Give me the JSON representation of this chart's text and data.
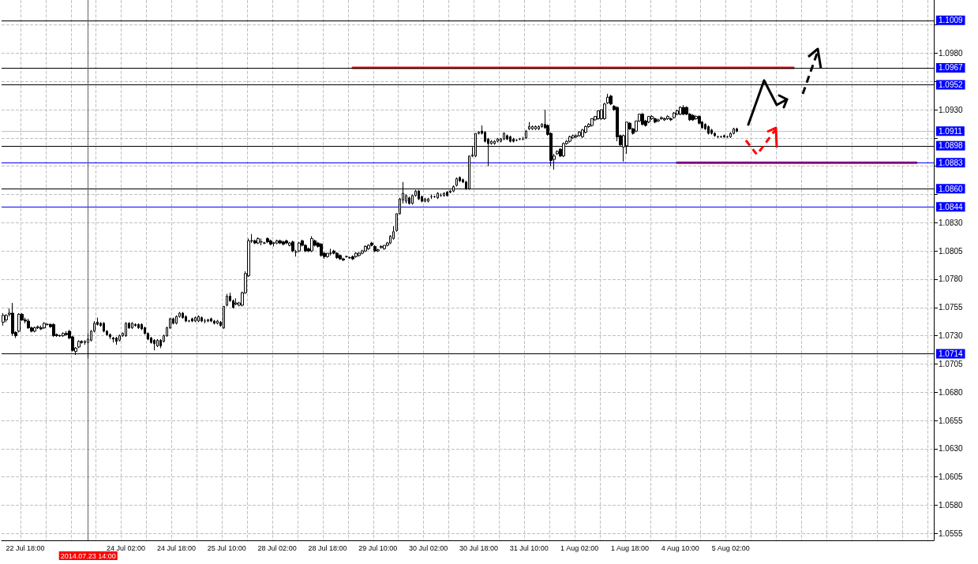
{
  "chart_data": {
    "type": "candlestick",
    "categories": [
      null,
      null,
      null,
      null,
      null,
      null,
      null,
      "22 Jul 18:00",
      null,
      null,
      null,
      null,
      null,
      null,
      null,
      null,
      null,
      null,
      null,
      null,
      null,
      null,
      null,
      null,
      null,
      null,
      null,
      "2014.07.23 14:00",
      null,
      null,
      null,
      null,
      null,
      null,
      null,
      null,
      null,
      null,
      null,
      "24 Jul 02:00",
      null,
      null,
      null,
      null,
      null,
      null,
      null,
      null,
      null,
      null,
      null,
      null,
      null,
      null,
      null,
      "24 Jul 18:00",
      null,
      null,
      null,
      null,
      null,
      null,
      null,
      null,
      null,
      null,
      null,
      null,
      null,
      null,
      null,
      "25 Jul 10:00",
      null,
      null,
      null,
      null,
      null,
      null,
      null,
      null,
      null,
      null,
      null,
      null,
      null,
      null,
      null,
      "28 Jul 02:00",
      null,
      null,
      null,
      null,
      null,
      null,
      null,
      null,
      null,
      null,
      null,
      null,
      null,
      null,
      null,
      "28 Jul 18:00",
      null,
      null,
      null,
      null,
      null,
      null,
      null,
      null,
      null,
      null,
      null,
      null,
      null,
      null,
      null,
      "29 Jul 10:00",
      null,
      null,
      null,
      null,
      null,
      null,
      null,
      null,
      null,
      null,
      null,
      null,
      null,
      null,
      null,
      "30 Jul 02:00",
      null,
      null,
      null,
      null,
      null,
      null,
      null,
      null,
      null,
      null,
      null,
      null,
      null,
      null,
      null,
      "30 Jul 18:00",
      null,
      null,
      null,
      null,
      null,
      null,
      null,
      null,
      null,
      null,
      null,
      null,
      null,
      null,
      null,
      "31 Jul 10:00",
      null,
      null,
      null,
      null,
      null,
      null,
      null,
      null,
      null,
      null,
      null,
      null,
      null,
      null,
      null,
      "1 Aug 02:00",
      null,
      null,
      null,
      null,
      null,
      null,
      null,
      null,
      null,
      null,
      null,
      null,
      null,
      null,
      null,
      "1 Aug 18:00",
      null,
      null,
      null,
      null,
      null,
      null,
      null,
      null,
      null,
      null,
      null,
      null,
      null,
      null,
      null,
      "4 Aug 10:00",
      null,
      null,
      null,
      null,
      null,
      null,
      null,
      null,
      null,
      null,
      null,
      null,
      null,
      null,
      null,
      "5 Aug 02:00",
      null,
      null,
      null,
      null,
      null,
      null,
      null,
      null,
      null,
      null,
      null,
      null,
      null,
      null,
      null,
      null,
      null,
      null,
      null,
      null,
      null,
      null,
      null,
      null,
      null,
      null,
      null,
      null,
      null,
      null,
      null,
      null,
      null,
      null,
      null,
      null,
      null,
      null,
      null,
      null,
      null,
      null,
      null,
      null,
      null,
      null,
      null,
      null,
      null,
      null,
      null,
      null,
      null,
      null,
      null,
      null,
      null,
      null,
      null,
      null,
      null,
      null,
      null,
      null
    ],
    "ohlc": [
      [
        1.0742,
        1.075,
        1.0739,
        1.0748
      ],
      [
        1.0744,
        1.0749,
        1.0742,
        1.0748
      ],
      [
        1.0749,
        1.0754,
        1.0747,
        1.075
      ],
      [
        1.075,
        1.0759,
        1.073,
        1.0732
      ],
      [
        1.0733,
        1.0734,
        1.0728,
        1.073
      ],
      [
        1.0734,
        1.075,
        1.0733,
        1.0749
      ],
      [
        1.0749,
        1.075,
        1.0743,
        1.0744
      ],
      [
        1.0744,
        1.0746,
        1.0741,
        1.0743
      ],
      [
        1.0743,
        1.0745,
        1.0736,
        1.0737
      ],
      [
        1.0737,
        1.0738,
        1.0733,
        1.0734
      ],
      [
        1.0734,
        1.0738,
        1.0733,
        1.0737
      ],
      [
        1.0737,
        1.0739,
        1.0736,
        1.0738
      ],
      [
        1.0737,
        1.0739,
        1.0735,
        1.0736
      ],
      [
        1.0737,
        1.0742,
        1.0736,
        1.0741
      ],
      [
        1.074,
        1.0741,
        1.0739,
        1.074
      ],
      [
        1.074,
        1.0741,
        1.0737,
        1.0738
      ],
      [
        1.074,
        1.0741,
        1.0729,
        1.073
      ],
      [
        1.0731,
        1.0732,
        1.0729,
        1.073
      ],
      [
        1.073,
        1.0731,
        1.0729,
        1.073
      ],
      [
        1.073,
        1.0733,
        1.0729,
        1.0732
      ],
      [
        1.0732,
        1.0734,
        1.073,
        1.0731
      ],
      [
        1.0734,
        1.0735,
        1.0727,
        1.0728
      ],
      [
        1.0729,
        1.073,
        1.0716,
        1.0717
      ],
      [
        1.0716,
        1.072,
        1.0713,
        1.0719
      ],
      [
        1.072,
        1.0726,
        1.0719,
        1.0725
      ],
      [
        1.0725,
        1.0726,
        1.0723,
        1.0724
      ],
      [
        1.0724,
        1.0726,
        1.0722,
        1.0725
      ],
      [
        1.0724,
        1.0732,
        1.071,
        1.0727
      ],
      [
        1.0726,
        1.0735,
        1.0725,
        1.0734
      ],
      [
        1.0734,
        1.0743,
        1.0733,
        1.0741
      ],
      [
        1.0742,
        1.0746,
        1.0739,
        1.074
      ],
      [
        1.0741,
        1.0742,
        1.0738,
        1.0739
      ],
      [
        1.0741,
        1.0742,
        1.0733,
        1.0734
      ],
      [
        1.0734,
        1.0735,
        1.073,
        1.0731
      ],
      [
        1.0731,
        1.0732,
        1.0727,
        1.0729
      ],
      [
        1.0728,
        1.0729,
        1.0724,
        1.0727
      ],
      [
        1.0728,
        1.0729,
        1.0722,
        1.0725
      ],
      [
        1.0726,
        1.0731,
        1.0725,
        1.073
      ],
      [
        1.073,
        1.0733,
        1.0729,
        1.0732
      ],
      [
        1.073,
        1.0742,
        1.0729,
        1.0741
      ],
      [
        1.0741,
        1.0742,
        1.0736,
        1.0737
      ],
      [
        1.0737,
        1.0742,
        1.0736,
        1.0741
      ],
      [
        1.074,
        1.0741,
        1.0738,
        1.0739
      ],
      [
        1.074,
        1.0741,
        1.0736,
        1.0737
      ],
      [
        1.074,
        1.0741,
        1.0735,
        1.0736
      ],
      [
        1.0737,
        1.0738,
        1.0731,
        1.0732
      ],
      [
        1.0732,
        1.0733,
        1.0726,
        1.0727
      ],
      [
        1.0728,
        1.0729,
        1.0723,
        1.0724
      ],
      [
        1.0726,
        1.0727,
        1.0717,
        1.0723
      ],
      [
        1.0721,
        1.0727,
        1.072,
        1.0726
      ],
      [
        1.0726,
        1.0727,
        1.0719,
        1.0721
      ],
      [
        1.0725,
        1.0731,
        1.0724,
        1.073
      ],
      [
        1.073,
        1.0738,
        1.0729,
        1.0737
      ],
      [
        1.0737,
        1.0746,
        1.0736,
        1.0745
      ],
      [
        1.0745,
        1.0746,
        1.074,
        1.0741
      ],
      [
        1.0741,
        1.0748,
        1.074,
        1.0747
      ],
      [
        1.0747,
        1.0751,
        1.0746,
        1.075
      ],
      [
        1.075,
        1.0751,
        1.0745,
        1.0746
      ],
      [
        1.0747,
        1.0748,
        1.0742,
        1.0743
      ],
      [
        1.0743,
        1.0744,
        1.0742,
        1.0743
      ],
      [
        1.0745,
        1.0746,
        1.0742,
        1.0743
      ],
      [
        1.0743,
        1.0747,
        1.0742,
        1.0746
      ],
      [
        1.0743,
        1.0748,
        1.0742,
        1.0747
      ],
      [
        1.0746,
        1.0747,
        1.0742,
        1.0743
      ],
      [
        1.0743,
        1.0745,
        1.0741,
        1.0743
      ],
      [
        1.0743,
        1.0745,
        1.0742,
        1.0744
      ],
      [
        1.0745,
        1.0746,
        1.0742,
        1.0743
      ],
      [
        1.0743,
        1.0744,
        1.074,
        1.0741
      ],
      [
        1.0741,
        1.0744,
        1.074,
        1.0743
      ],
      [
        1.0742,
        1.0743,
        1.0738,
        1.0739
      ],
      [
        1.0737,
        1.0756,
        1.0736,
        1.0756
      ],
      [
        1.0757,
        1.0767,
        1.0756,
        1.0765
      ],
      [
        1.0765,
        1.0768,
        1.076,
        1.0761
      ],
      [
        1.0761,
        1.0762,
        1.0754,
        1.0755
      ],
      [
        1.0758,
        1.0763,
        1.0757,
        1.0759
      ],
      [
        1.0757,
        1.076,
        1.0756,
        1.0759
      ],
      [
        1.0757,
        1.0769,
        1.0756,
        1.0768
      ],
      [
        1.0768,
        1.0787,
        1.0767,
        1.0785
      ],
      [
        1.0783,
        1.0816,
        1.0782,
        1.0814
      ],
      [
        1.0814,
        1.082,
        1.0812,
        1.0814
      ],
      [
        1.0814,
        1.0815,
        1.0811,
        1.0812
      ],
      [
        1.0812,
        1.0817,
        1.0811,
        1.0816
      ],
      [
        1.0813,
        1.0816,
        1.081,
        1.0813
      ],
      [
        1.0812,
        1.0813,
        1.0811,
        1.0812
      ],
      [
        1.0816,
        1.0817,
        1.0812,
        1.0813
      ],
      [
        1.0814,
        1.0815,
        1.081,
        1.0811
      ],
      [
        1.0812,
        1.0813,
        1.0809,
        1.0812
      ],
      [
        1.0812,
        1.0815,
        1.0811,
        1.0814
      ],
      [
        1.0814,
        1.0815,
        1.0811,
        1.0812
      ],
      [
        1.0813,
        1.0814,
        1.081,
        1.0811
      ],
      [
        1.0814,
        1.0815,
        1.0811,
        1.0812
      ],
      [
        1.081,
        1.0813,
        1.0809,
        1.0812
      ],
      [
        1.0813,
        1.0814,
        1.0804,
        1.0805
      ],
      [
        1.0804,
        1.0806,
        1.08,
        1.0804
      ],
      [
        1.0805,
        1.0813,
        1.0804,
        1.0812
      ],
      [
        1.0814,
        1.0815,
        1.0809,
        1.081
      ],
      [
        1.081,
        1.0811,
        1.0804,
        1.0805
      ],
      [
        1.0807,
        1.0808,
        1.0804,
        1.0805
      ],
      [
        1.0805,
        1.0818,
        1.0804,
        1.0816
      ],
      [
        1.0814,
        1.0815,
        1.0809,
        1.081
      ],
      [
        1.0812,
        1.0813,
        1.0808,
        1.0809
      ],
      [
        1.0811,
        1.0812,
        1.08,
        1.0801
      ],
      [
        1.0803,
        1.0804,
        1.0798,
        1.08
      ],
      [
        1.08,
        1.0803,
        1.0799,
        1.0803
      ],
      [
        1.0803,
        1.0807,
        1.0801,
        1.0803
      ],
      [
        1.0805,
        1.0806,
        1.0802,
        1.0803
      ],
      [
        1.0803,
        1.0804,
        1.0798,
        1.0799
      ],
      [
        1.0801,
        1.0802,
        1.0797,
        1.0798
      ],
      [
        1.0798,
        1.0799,
        1.0796,
        1.0797
      ],
      [
        1.08,
        1.0801,
        1.0799,
        1.08
      ],
      [
        1.0799,
        1.08,
        1.0798,
        1.0799
      ],
      [
        1.08,
        1.0801,
        1.0797,
        1.0798
      ],
      [
        1.08,
        1.0804,
        1.0799,
        1.0803
      ],
      [
        1.0801,
        1.0804,
        1.08,
        1.0803
      ],
      [
        1.0803,
        1.0806,
        1.0802,
        1.0805
      ],
      [
        1.0805,
        1.081,
        1.0804,
        1.0809
      ],
      [
        1.0807,
        1.0811,
        1.0806,
        1.081
      ],
      [
        1.0812,
        1.0813,
        1.0809,
        1.081
      ],
      [
        1.0809,
        1.081,
        1.0804,
        1.0805
      ],
      [
        1.0805,
        1.0807,
        1.0804,
        1.0806
      ],
      [
        1.0808,
        1.081,
        1.0807,
        1.0809
      ],
      [
        1.0807,
        1.081,
        1.0806,
        1.081
      ],
      [
        1.081,
        1.0813,
        1.0809,
        1.0812
      ],
      [
        1.0812,
        1.0819,
        1.0811,
        1.0818
      ],
      [
        1.0816,
        1.0827,
        1.0815,
        1.0822
      ],
      [
        1.0823,
        1.0838,
        1.0822,
        1.0838
      ],
      [
        1.0838,
        1.0852,
        1.0837,
        1.0851
      ],
      [
        1.085,
        1.0866,
        1.0847,
        1.0856
      ],
      [
        1.0849,
        1.0855,
        1.0847,
        1.0854
      ],
      [
        1.0852,
        1.0853,
        1.0846,
        1.0847
      ],
      [
        1.0847,
        1.0855,
        1.0846,
        1.0854
      ],
      [
        1.0854,
        1.0859,
        1.0853,
        1.0858
      ],
      [
        1.0858,
        1.0859,
        1.085,
        1.0851
      ],
      [
        1.0853,
        1.0854,
        1.0848,
        1.0849
      ],
      [
        1.0849,
        1.0852,
        1.0848,
        1.0851
      ],
      [
        1.0849,
        1.0852,
        1.0848,
        1.0851
      ],
      [
        1.0853,
        1.0855,
        1.0851,
        1.0853
      ],
      [
        1.0853,
        1.0854,
        1.0852,
        1.0853
      ],
      [
        1.0852,
        1.0857,
        1.0851,
        1.0856
      ],
      [
        1.0854,
        1.0856,
        1.0853,
        1.0854
      ],
      [
        1.0854,
        1.0857,
        1.0853,
        1.0856
      ],
      [
        1.0857,
        1.0858,
        1.0853,
        1.0854
      ],
      [
        1.0857,
        1.0859,
        1.0856,
        1.0858
      ],
      [
        1.0858,
        1.0863,
        1.0857,
        1.0862
      ],
      [
        1.0863,
        1.087,
        1.0862,
        1.0869
      ],
      [
        1.087,
        1.0871,
        1.0866,
        1.0867
      ],
      [
        1.0868,
        1.0869,
        1.0865,
        1.0866
      ],
      [
        1.0866,
        1.0867,
        1.0859,
        1.086
      ],
      [
        1.086,
        1.0889,
        1.0859,
        1.0889
      ],
      [
        1.0889,
        1.0897,
        1.0888,
        1.089
      ],
      [
        1.0889,
        1.0909,
        1.0888,
        1.0909
      ],
      [
        1.0909,
        1.0911,
        1.0908,
        1.091
      ],
      [
        1.0911,
        1.0916,
        1.0908,
        1.0909
      ],
      [
        1.091,
        1.0911,
        1.0901,
        1.0902
      ],
      [
        1.0904,
        1.0905,
        1.088,
        1.09
      ],
      [
        1.09,
        1.0903,
        1.0899,
        1.0902
      ],
      [
        1.09,
        1.0903,
        1.0899,
        1.0902
      ],
      [
        1.0902,
        1.0905,
        1.0901,
        1.0904
      ],
      [
        1.0902,
        1.0905,
        1.0901,
        1.0904
      ],
      [
        1.0904,
        1.091,
        1.0903,
        1.0909
      ],
      [
        1.0907,
        1.0908,
        1.0903,
        1.0904
      ],
      [
        1.0906,
        1.0907,
        1.0901,
        1.0902
      ],
      [
        1.0904,
        1.0905,
        1.0901,
        1.0902
      ],
      [
        1.0903,
        1.0904,
        1.0902,
        1.0903
      ],
      [
        1.0904,
        1.0905,
        1.0903,
        1.0904
      ],
      [
        1.0904,
        1.0906,
        1.0903,
        1.0904
      ],
      [
        1.0905,
        1.0912,
        1.0904,
        1.0911
      ],
      [
        1.0913,
        1.0919,
        1.0912,
        1.0915
      ],
      [
        1.0913,
        1.0916,
        1.0912,
        1.0915
      ],
      [
        1.0913,
        1.0916,
        1.0912,
        1.0915
      ],
      [
        1.0913,
        1.0916,
        1.0912,
        1.0915
      ],
      [
        1.0915,
        1.0918,
        1.0914,
        1.0917
      ],
      [
        1.0917,
        1.093,
        1.0913,
        1.0914
      ],
      [
        1.0916,
        1.0917,
        1.0907,
        1.0908
      ],
      [
        1.0909,
        1.091,
        1.088,
        1.0885
      ],
      [
        1.0886,
        1.0891,
        1.0877,
        1.0889
      ],
      [
        1.0891,
        1.0894,
        1.089,
        1.0893
      ],
      [
        1.0895,
        1.0896,
        1.0888,
        1.0889
      ],
      [
        1.0889,
        1.0901,
        1.0888,
        1.09
      ],
      [
        1.09,
        1.0903,
        1.0899,
        1.0902
      ],
      [
        1.0902,
        1.0907,
        1.0901,
        1.0906
      ],
      [
        1.0905,
        1.0908,
        1.0904,
        1.0907
      ],
      [
        1.0906,
        1.0908,
        1.0905,
        1.0907
      ],
      [
        1.0907,
        1.0911,
        1.0906,
        1.091
      ],
      [
        1.0906,
        1.0913,
        1.0905,
        1.0912
      ],
      [
        1.091,
        1.0916,
        1.0909,
        1.0915
      ],
      [
        1.0915,
        1.0918,
        1.0914,
        1.0917
      ],
      [
        1.0916,
        1.0922,
        1.0915,
        1.0922
      ],
      [
        1.0921,
        1.0924,
        1.092,
        1.0924
      ],
      [
        1.0922,
        1.0929,
        1.0921,
        1.0929
      ],
      [
        1.0922,
        1.093,
        1.0921,
        1.093
      ],
      [
        1.0922,
        1.0936,
        1.0921,
        1.0935
      ],
      [
        1.0936,
        1.0944,
        1.0935,
        1.0941
      ],
      [
        1.0942,
        1.0943,
        1.0934,
        1.0935
      ],
      [
        1.0933,
        1.0934,
        1.0929,
        1.093
      ],
      [
        1.0932,
        1.0933,
        1.0902,
        1.0906
      ],
      [
        1.0907,
        1.0908,
        1.0898,
        1.0899
      ],
      [
        1.0897,
        1.0908,
        1.0884,
        1.0907
      ],
      [
        1.0898,
        1.0919,
        1.0891,
        1.0919
      ],
      [
        1.0918,
        1.0919,
        1.0912,
        1.0913
      ],
      [
        1.0913,
        1.0914,
        1.0908,
        1.0909
      ],
      [
        1.0911,
        1.092,
        1.091,
        1.092
      ],
      [
        1.092,
        1.0926,
        1.0919,
        1.0926
      ],
      [
        1.0926,
        1.0927,
        1.0916,
        1.0917
      ],
      [
        1.092,
        1.0921,
        1.0915,
        1.0916
      ],
      [
        1.0919,
        1.0924,
        1.0918,
        1.0924
      ],
      [
        1.0922,
        1.0925,
        1.0921,
        1.0924
      ],
      [
        1.0922,
        1.0923,
        1.0918,
        1.0919
      ],
      [
        1.092,
        1.0922,
        1.0919,
        1.0921
      ],
      [
        1.0922,
        1.0924,
        1.0921,
        1.0923
      ],
      [
        1.0921,
        1.0923,
        1.092,
        1.0922
      ],
      [
        1.0922,
        1.0925,
        1.0921,
        1.0924
      ],
      [
        1.0922,
        1.0923,
        1.092,
        1.0921
      ],
      [
        1.0923,
        1.0928,
        1.0922,
        1.0927
      ],
      [
        1.0926,
        1.093,
        1.0925,
        1.0929
      ],
      [
        1.0926,
        1.0933,
        1.0925,
        1.0932
      ],
      [
        1.0932,
        1.0934,
        1.0925,
        1.0926
      ],
      [
        1.0932,
        1.0933,
        1.0925,
        1.0926
      ],
      [
        1.0926,
        1.0927,
        1.092,
        1.0921
      ],
      [
        1.0925,
        1.0926,
        1.092,
        1.0921
      ],
      [
        1.0922,
        1.0925,
        1.0921,
        1.0924
      ],
      [
        1.0924,
        1.0925,
        1.0917,
        1.0918
      ],
      [
        1.0919,
        1.092,
        1.0913,
        1.0914
      ],
      [
        1.0917,
        1.0918,
        1.0912,
        1.0913
      ],
      [
        1.0915,
        1.0916,
        1.0908,
        1.0909
      ],
      [
        1.0912,
        1.0913,
        1.0908,
        1.0909
      ],
      [
        1.0909,
        1.091,
        1.0906,
        1.0907
      ],
      [
        1.0906,
        1.0907,
        1.0905,
        1.0906
      ],
      [
        1.0906,
        1.0907,
        1.0905,
        1.0906
      ],
      [
        1.0907,
        1.0908,
        1.0905,
        1.0906
      ],
      [
        1.0906,
        1.0907,
        1.0905,
        1.0906
      ],
      [
        1.0906,
        1.091,
        1.0905,
        1.0909
      ],
      [
        1.0909,
        1.0914,
        1.0908,
        1.0913
      ],
      [
        1.0913,
        1.0914,
        1.091,
        1.0911
      ],
      null,
      null,
      null,
      null,
      null,
      null,
      null,
      null,
      null,
      null,
      null,
      null,
      null,
      null,
      null,
      null,
      null,
      null,
      null,
      null,
      null,
      null,
      null,
      null,
      null,
      null,
      null,
      null,
      null,
      null,
      null,
      null,
      null,
      null,
      null,
      null,
      null,
      null,
      null,
      null,
      null,
      null,
      null,
      null,
      null,
      null,
      null,
      null,
      null,
      null,
      null,
      null,
      null,
      null,
      null,
      null,
      null,
      null,
      null,
      null,
      null,
      null
    ],
    "series": [
      {
        "type": "line",
        "color": "#ff0000",
        "values": [
          null,
          null,
          null,
          null,
          null,
          null,
          null,
          null,
          null,
          null,
          null,
          null,
          null,
          null,
          null,
          null,
          null,
          null,
          null,
          null,
          null,
          null,
          null,
          null,
          null,
          null,
          null,
          null,
          null,
          null,
          null,
          null,
          null,
          null,
          null,
          null,
          null,
          null,
          null,
          null,
          null,
          null,
          null,
          null,
          null,
          null,
          null,
          null,
          null,
          null,
          null,
          null,
          null,
          null,
          null,
          null,
          null,
          null,
          null,
          null,
          null,
          null,
          null,
          null,
          null,
          null,
          null,
          null,
          null,
          null,
          null,
          null,
          null,
          null,
          null,
          null,
          null,
          null,
          null,
          null,
          null,
          null,
          null,
          null,
          null,
          null,
          null,
          null,
          null,
          null,
          null,
          null,
          null,
          null,
          null,
          null,
          null,
          null,
          null,
          null,
          null,
          null,
          null,
          null,
          null,
          null,
          null,
          null,
          null,
          null,
          null,
          1.0967,
          1.0967,
          1.0967,
          1.0967,
          1.0967,
          1.0967,
          1.0967,
          1.0967,
          1.0967,
          1.0967,
          1.0967,
          1.0967,
          1.0967,
          1.0967,
          1.0967,
          1.0967,
          1.0967,
          1.0967,
          1.0967,
          1.0967,
          1.0967,
          1.0967,
          1.0967,
          1.0967,
          1.0967,
          1.0967,
          1.0967,
          1.0967,
          1.0967,
          1.0967,
          1.0967,
          1.0967,
          1.0967,
          1.0967,
          1.0967,
          1.0967,
          1.0967,
          1.0967,
          1.0967,
          1.0967,
          1.0967,
          1.0967,
          1.0967,
          1.0967,
          1.0967,
          1.0967,
          1.0967,
          1.0967,
          1.0967,
          1.0967,
          1.0967,
          1.0967,
          1.0967,
          1.0967,
          1.0967,
          1.0967,
          1.0967,
          1.0967,
          1.0967,
          1.0967,
          1.0967,
          1.0967,
          1.0967,
          1.0967,
          1.0967,
          1.0967,
          1.0967,
          1.0967,
          1.0967,
          1.0967,
          1.0967,
          1.0967,
          1.0967,
          1.0967,
          1.0967,
          1.0967,
          1.0967,
          1.0967,
          1.0967,
          1.0967,
          1.0967,
          1.0967,
          1.0967,
          1.0967,
          1.0967,
          1.0967,
          1.0967,
          1.0967,
          1.0967,
          1.0967,
          1.0967,
          1.0967,
          1.0967,
          1.0967,
          1.0967,
          1.0967,
          1.0967,
          1.0967,
          1.0967,
          1.0967,
          1.0967,
          1.0967,
          1.0967,
          1.0967,
          1.0967,
          1.0967,
          1.0967,
          1.0967,
          1.0967,
          1.0967,
          1.0967,
          1.0967,
          1.0967,
          1.0967,
          1.0967,
          1.0967,
          1.0967,
          1.0967,
          1.0967,
          1.0967,
          1.0967,
          1.0967,
          1.0967,
          1.0967,
          1.0967,
          1.0967,
          1.0967,
          1.0967,
          1.0967,
          1.0967,
          1.0967,
          1.0967,
          1.0967,
          1.0967,
          1.0967,
          1.0967,
          1.0967,
          1.0967,
          1.0967,
          1.0967,
          1.0967,
          null,
          null,
          null,
          null,
          null,
          null,
          null,
          null,
          null,
          null,
          null,
          null,
          null,
          null,
          null,
          null,
          null,
          null,
          null,
          null,
          null,
          null,
          null,
          null,
          null,
          null,
          null,
          null,
          null,
          null,
          null,
          null,
          null,
          null,
          null,
          null,
          null,
          null,
          null,
          null,
          null,
          null,
          null,
          null
        ]
      },
      {
        "type": "line",
        "color": "#ff0000",
        "values": [
          null,
          null,
          null,
          null,
          null,
          null,
          null,
          null,
          null,
          null,
          null,
          null,
          null,
          null,
          null,
          null,
          null,
          null,
          null,
          null,
          null,
          null,
          null,
          null,
          null,
          null,
          null,
          null,
          null,
          null,
          null,
          null,
          null,
          null,
          null,
          null,
          null,
          null,
          null,
          null,
          null,
          null,
          null,
          null,
          null,
          null,
          null,
          null,
          null,
          null,
          null,
          null,
          null,
          null,
          null,
          null,
          null,
          null,
          null,
          null,
          null,
          null,
          null,
          null,
          null,
          null,
          null,
          null,
          null,
          null,
          null,
          null,
          null,
          null,
          null,
          null,
          null,
          null,
          null,
          null,
          null,
          null,
          null,
          null,
          null,
          null,
          null,
          null,
          null,
          null,
          null,
          null,
          null,
          null,
          null,
          null,
          null,
          null,
          null,
          null,
          null,
          null,
          null,
          null,
          null,
          null,
          null,
          null,
          null,
          null,
          null,
          null,
          null,
          null,
          null,
          null,
          null,
          null,
          null,
          null,
          null,
          null,
          null,
          null,
          null,
          null,
          null,
          null,
          null,
          null,
          null,
          null,
          null,
          null,
          null,
          null,
          null,
          null,
          null,
          null,
          null,
          null,
          null,
          null,
          null,
          null,
          null,
          null,
          null,
          null,
          null,
          null,
          null,
          null,
          null,
          null,
          null,
          null,
          null,
          null,
          null,
          null,
          null,
          null,
          null,
          null,
          null,
          null,
          null,
          null,
          null,
          null,
          null,
          null,
          null,
          null,
          null,
          null,
          null,
          null,
          null,
          null,
          null,
          null,
          null,
          null,
          null,
          null,
          null,
          null,
          null,
          null,
          null,
          null,
          null,
          null,
          null,
          null,
          null,
          null,
          null,
          null,
          null,
          null,
          null,
          null,
          null,
          null,
          null,
          null,
          null,
          null,
          null,
          null,
          1.0883,
          1.0883,
          1.0883,
          1.0883,
          1.0883,
          1.0883,
          1.0883,
          1.0883,
          1.0883,
          1.0883,
          1.0883,
          1.0883,
          1.0883,
          1.0883,
          1.0883,
          1.0883,
          1.0883,
          1.0883,
          1.0883,
          1.0883,
          1.0883,
          1.0883,
          1.0883,
          1.0883,
          1.0883,
          1.0883,
          1.0883,
          1.0883,
          1.0883,
          1.0883,
          1.0883,
          1.0883,
          1.0883,
          1.0883,
          1.0883,
          1.0883,
          1.0883,
          1.0883,
          1.0883,
          1.0883,
          1.0883,
          1.0883,
          1.0883,
          1.0883,
          1.0883,
          1.0883,
          1.0883,
          1.0883,
          1.0883,
          1.0883,
          1.0883,
          1.0883,
          1.0883,
          1.0883,
          1.0883,
          1.0883,
          1.0883,
          1.0883,
          1.0883,
          1.0883,
          1.0883,
          1.0883,
          1.0883,
          1.0883,
          1.0883,
          1.0883,
          1.0883,
          1.0883,
          1.0883,
          1.0883,
          1.0883,
          1.0883,
          1.0883,
          1.0883,
          1.0883,
          1.0883,
          1.0883,
          null,
          null,
          null,
          null,
          null
        ]
      }
    ],
    "ylim": [
      1.0549,
      1.1027
    ],
    "yticks": [
      {
        "value": 1.0555,
        "label": "1.0555"
      },
      {
        "value": 1.058,
        "label": "1.0580"
      },
      {
        "value": 1.0605,
        "label": "1.0605"
      },
      {
        "value": 1.063,
        "label": "1.0630"
      },
      {
        "value": 1.0655,
        "label": "1.0655"
      },
      {
        "value": 1.068,
        "label": "1.0680"
      },
      {
        "value": 1.0705,
        "label": "1.0705"
      },
      {
        "value": 1.073,
        "label": "1.0730"
      },
      {
        "value": 1.0755,
        "label": "1.0755"
      },
      {
        "value": 1.078,
        "label": "1.0780"
      },
      {
        "value": 1.0805,
        "label": "1.0805"
      },
      {
        "value": 1.083,
        "label": "1.0830"
      },
      {
        "value": 1.0855,
        "label": null
      },
      {
        "value": 1.088,
        "label": null
      },
      {
        "value": 1.0905,
        "label": null
      },
      {
        "value": 1.093,
        "label": "1.0930"
      },
      {
        "value": 1.0955,
        "label": null
      },
      {
        "value": 1.098,
        "label": "1.0980"
      },
      {
        "value": 1.1005,
        "label": null
      }
    ],
    "ref_lines": [
      {
        "axis": "y",
        "value": 1.1009,
        "label": "1.1009",
        "color": "#000000"
      },
      {
        "axis": "y",
        "value": 1.0967,
        "label": "1.0967",
        "color": "#000000"
      },
      {
        "axis": "y",
        "value": 1.0952,
        "label": "1.0952",
        "color": "#000000"
      },
      {
        "axis": "y",
        "value": 1.0911,
        "label": "1.0911",
        "color": "#c0c0c0"
      },
      {
        "axis": "y",
        "value": 1.0898,
        "label": "1.0898",
        "color": "#000000"
      },
      {
        "axis": "y",
        "value": 1.0883,
        "label": "1.0883",
        "color": "#0000ff"
      },
      {
        "axis": "y",
        "value": 1.086,
        "label": "1.0860",
        "color": "#000000"
      },
      {
        "axis": "y",
        "value": 1.0844,
        "label": "1.0844",
        "color": "#0000ff"
      },
      {
        "axis": "y",
        "value": 1.0714,
        "label": "1.0714",
        "color": "#000000"
      },
      {
        "axis": "x",
        "value": "2014.07.23 14:00",
        "color": "#606060"
      }
    ],
    "grid": true,
    "marker": "none"
  }
}
